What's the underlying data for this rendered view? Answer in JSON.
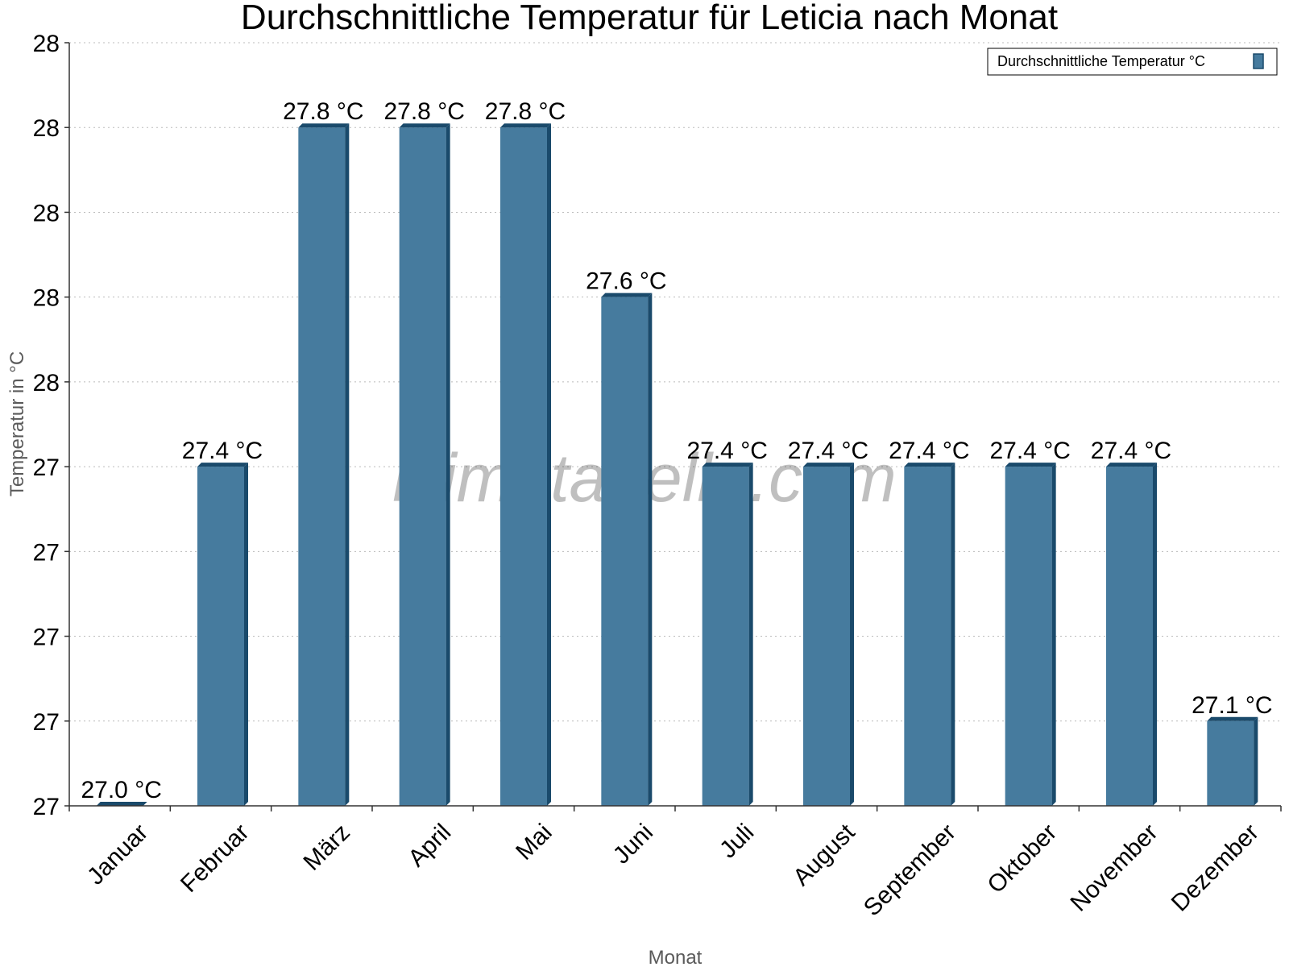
{
  "chart_data": {
    "type": "bar",
    "title": "Durchschnittliche Temperatur für Leticia nach Monat",
    "xlabel": "Monat",
    "ylabel": "Temperatur in °C",
    "categories": [
      "Januar",
      "Februar",
      "März",
      "April",
      "Mai",
      "Juni",
      "Juli",
      "August",
      "September",
      "Oktober",
      "November",
      "Dezember"
    ],
    "series": [
      {
        "name": "Durchschnittliche Temperatur °C",
        "values": [
          27.0,
          27.4,
          27.8,
          27.8,
          27.8,
          27.6,
          27.4,
          27.4,
          27.4,
          27.4,
          27.4,
          27.1
        ],
        "labels": [
          "27.0 °C",
          "27.4 °C",
          "27.8 °C",
          "27.8 °C",
          "27.8 °C",
          "27.6 °C",
          "27.4 °C",
          "27.4 °C",
          "27.4 °C",
          "27.4 °C",
          "27.4 °C",
          "27.1 °C"
        ]
      }
    ],
    "ylim": [
      27.0,
      27.9
    ],
    "yticks": [
      27.0,
      27.1,
      27.2,
      27.3,
      27.4,
      27.5,
      27.6,
      27.7,
      27.8,
      27.9
    ],
    "ytick_labels": [
      "27",
      "27",
      "27",
      "27",
      "27",
      "28",
      "28",
      "28",
      "28",
      "28"
    ],
    "grid": true,
    "legend_position": "top-right",
    "colors": {
      "bar": "#467b9e",
      "bar_side": "#1a4a6b",
      "grid": "#bbbbbb"
    }
  },
  "watermark": "klimatabelle.com"
}
